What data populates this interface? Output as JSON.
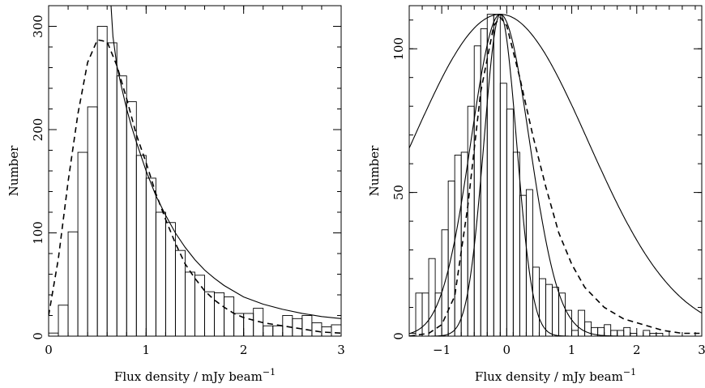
{
  "chart_data": [
    {
      "type": "bar",
      "xlabel": "Flux density / mJy beam",
      "xlabel_sup": "−1",
      "ylabel": "Number",
      "xlim": [
        0,
        3
      ],
      "ylim": [
        0,
        320
      ],
      "x_ticks": [
        0,
        1,
        2,
        3
      ],
      "y_ticks": [
        0,
        100,
        200,
        300
      ],
      "bin_width": 0.1,
      "bins": {
        "x0": [
          0.0,
          0.1,
          0.2,
          0.3,
          0.4,
          0.5,
          0.6,
          0.7,
          0.8,
          0.9,
          1.0,
          1.1,
          1.2,
          1.3,
          1.4,
          1.5,
          1.6,
          1.7,
          1.8,
          1.9,
          2.0,
          2.1,
          2.2,
          2.3,
          2.4,
          2.5,
          2.6,
          2.7,
          2.8,
          2.9
        ],
        "counts": [
          3,
          30,
          101,
          178,
          222,
          300,
          284,
          252,
          227,
          175,
          153,
          120,
          110,
          83,
          62,
          59,
          43,
          42,
          38,
          22,
          22,
          27,
          10,
          10,
          20,
          17,
          20,
          13,
          9,
          11
        ]
      },
      "dashed_curve": {
        "x": [
          0,
          0.1,
          0.2,
          0.3,
          0.4,
          0.5,
          0.6,
          0.7,
          0.8,
          0.9,
          1.0,
          1.1,
          1.2,
          1.3,
          1.4,
          1.5,
          1.6,
          1.7,
          1.8,
          1.9,
          2.0,
          2.2,
          2.4,
          2.6,
          2.8,
          3.0
        ],
        "y": [
          20,
          75,
          150,
          215,
          265,
          287,
          285,
          262,
          230,
          195,
          168,
          138,
          113,
          90,
          70,
          56,
          44,
          35,
          28,
          22,
          18,
          13,
          10,
          7,
          4,
          3
        ]
      },
      "solid_curve": {
        "x": [
          0.64,
          0.66,
          0.7,
          0.75,
          0.8,
          0.85,
          0.9,
          1.0,
          1.1,
          1.2,
          1.3,
          1.4,
          1.5,
          1.6,
          1.7,
          1.8,
          2.0,
          2.2,
          2.4,
          2.6,
          2.8,
          3.0
        ],
        "y": [
          320,
          290,
          262,
          240,
          220,
          203,
          188,
          160,
          136,
          117,
          100,
          86,
          74,
          64,
          56,
          49,
          38,
          31,
          26,
          22,
          19,
          17
        ]
      }
    },
    {
      "type": "bar",
      "xlabel": "Flux density / mJy beam",
      "xlabel_sup": "−1",
      "ylabel": "Number",
      "xlim": [
        -1.5,
        3
      ],
      "ylim": [
        0,
        115
      ],
      "x_ticks": [
        -1,
        0,
        1,
        2,
        3
      ],
      "x_tick_labels": [
        "−1",
        "0",
        "1",
        "2",
        "3"
      ],
      "y_ticks": [
        0,
        50,
        100
      ],
      "bin_width": 0.1,
      "bins": {
        "x0": [
          -1.5,
          -1.4,
          -1.3,
          -1.2,
          -1.1,
          -1.0,
          -0.9,
          -0.8,
          -0.7,
          -0.6,
          -0.5,
          -0.4,
          -0.3,
          -0.2,
          -0.1,
          0.0,
          0.1,
          0.2,
          0.3,
          0.4,
          0.5,
          0.6,
          0.7,
          0.8,
          0.9,
          1.0,
          1.1,
          1.2,
          1.3,
          1.4,
          1.5,
          1.6,
          1.7,
          1.8,
          1.9,
          2.0,
          2.1,
          2.2,
          2.3,
          2.4,
          2.5,
          2.6,
          2.7,
          2.8,
          2.9
        ],
        "counts": [
          1,
          15,
          15,
          27,
          15,
          37,
          54,
          63,
          64,
          80,
          101,
          107,
          112,
          112,
          88,
          79,
          64,
          49,
          51,
          24,
          20,
          18,
          17,
          15,
          9,
          2,
          9,
          5,
          3,
          3,
          4,
          2,
          2,
          3,
          1,
          0,
          2,
          1,
          1,
          0,
          0,
          0,
          0,
          0,
          0
        ]
      },
      "wide_gaussian": {
        "mu": -0.1,
        "amp": 112,
        "sigma": 1.35
      },
      "mid_gaussian": {
        "mu": -0.1,
        "amp": 112,
        "sigma": 0.45
      },
      "narrow_gaussian": {
        "mu": -0.1,
        "amp": 112,
        "sigma": 0.25
      },
      "dashed_curve": {
        "x": [
          -1.5,
          -1.2,
          -1.0,
          -0.8,
          -0.6,
          -0.4,
          -0.2,
          -0.1,
          0.0,
          0.2,
          0.4,
          0.6,
          0.8,
          1.0,
          1.2,
          1.5,
          1.8,
          2.1,
          2.4,
          2.7,
          3.0
        ],
        "y": [
          0,
          1,
          4,
          14,
          45,
          85,
          108,
          111,
          108,
          90,
          70,
          52,
          36,
          25,
          17,
          10,
          6,
          4,
          2,
          1,
          1
        ]
      }
    }
  ]
}
